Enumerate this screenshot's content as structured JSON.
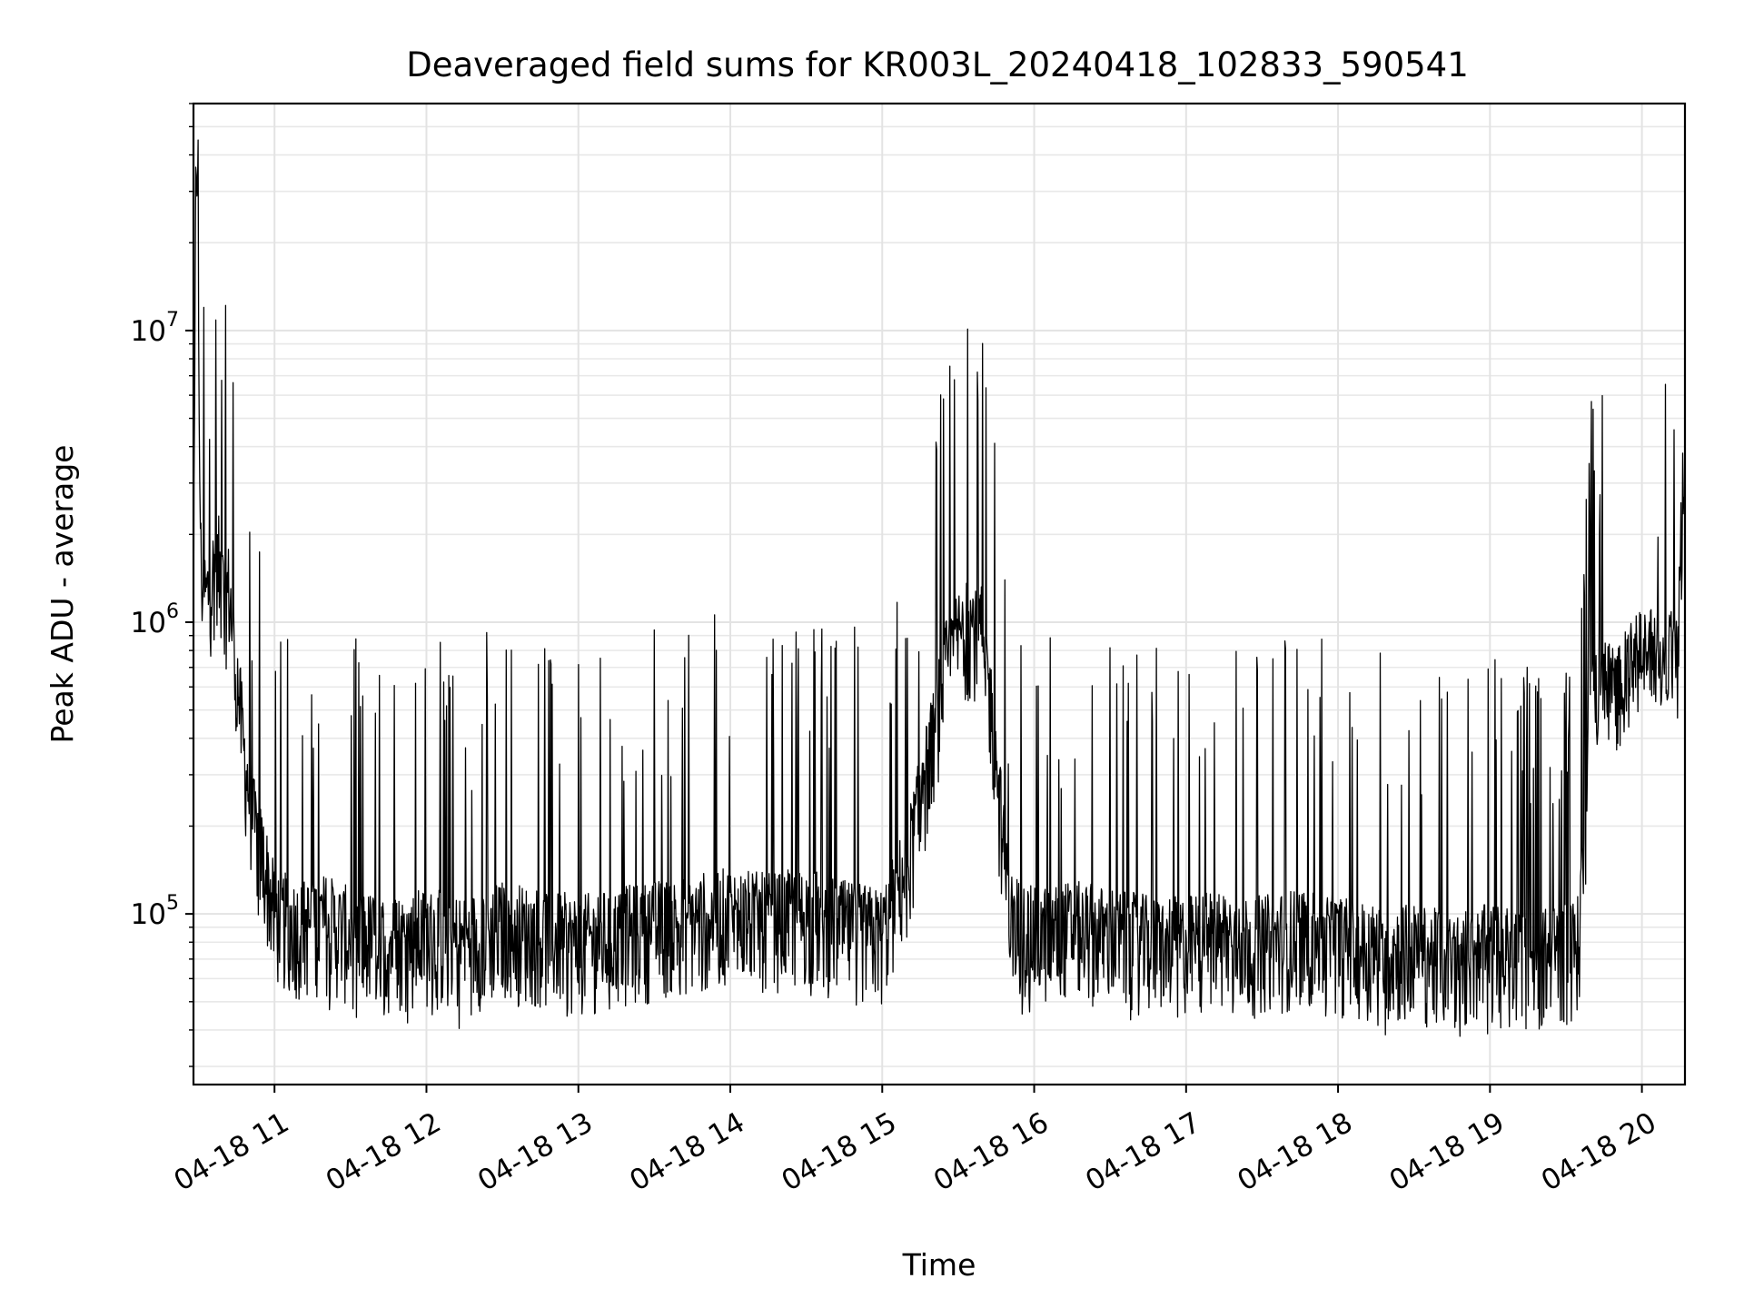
{
  "chart_data": {
    "type": "line",
    "title": "Deaveraged field sums for KR003L_20240418_102833_590541",
    "xlabel": "Time",
    "ylabel": "Peak ADU - average",
    "x_tick_labels": [
      "04-18 11",
      "04-18 12",
      "04-18 13",
      "04-18 14",
      "04-18 15",
      "04-18 16",
      "04-18 17",
      "04-18 18",
      "04-18 19",
      "04-18 20"
    ],
    "x_ticks": [
      "2024-04-18 11:00",
      "2024-04-18 12:00",
      "2024-04-18 13:00",
      "2024-04-18 14:00",
      "2024-04-18 15:00",
      "2024-04-18 16:00",
      "2024-04-18 17:00",
      "2024-04-18 18:00",
      "2024-04-18 19:00",
      "2024-04-18 20:00"
    ],
    "xlim": [
      "2024-04-18 10:28",
      "2024-04-18 20:17"
    ],
    "y_tick_labels": [
      "10^5",
      "10^6",
      "10^7"
    ],
    "y_scale": "log",
    "ylim": [
      26000,
      60000000
    ],
    "grid": true,
    "line_color": "#000000",
    "series": [
      {
        "x": [
          "2024-04-18 10:28",
          "2024-04-18 10:29",
          "2024-04-18 10:31",
          "2024-04-18 10:33",
          "2024-04-18 10:35",
          "2024-04-18 10:38",
          "2024-04-18 10:40",
          "2024-04-18 10:42",
          "2024-04-18 10:45",
          "2024-04-18 10:48",
          "2024-04-18 10:52",
          "2024-04-18 10:56",
          "2024-04-18 11:00",
          "2024-04-18 11:10",
          "2024-04-18 11:20",
          "2024-04-18 11:30",
          "2024-04-18 11:45",
          "2024-04-18 12:00",
          "2024-04-18 12:15",
          "2024-04-18 12:30",
          "2024-04-18 12:45",
          "2024-04-18 13:00",
          "2024-04-18 13:15",
          "2024-04-18 13:30",
          "2024-04-18 13:45",
          "2024-04-18 14:00",
          "2024-04-18 14:15",
          "2024-04-18 14:30",
          "2024-04-18 14:45",
          "2024-04-18 15:00",
          "2024-04-18 15:10",
          "2024-04-18 15:20",
          "2024-04-18 15:25",
          "2024-04-18 15:30",
          "2024-04-18 15:35",
          "2024-04-18 15:40",
          "2024-04-18 15:45",
          "2024-04-18 15:50",
          "2024-04-18 15:55",
          "2024-04-18 16:00",
          "2024-04-18 16:15",
          "2024-04-18 16:30",
          "2024-04-18 16:45",
          "2024-04-18 17:00",
          "2024-04-18 17:15",
          "2024-04-18 17:30",
          "2024-04-18 17:45",
          "2024-04-18 18:00",
          "2024-04-18 18:15",
          "2024-04-18 18:30",
          "2024-04-18 18:45",
          "2024-04-18 19:00",
          "2024-04-18 19:15",
          "2024-04-18 19:30",
          "2024-04-18 19:35",
          "2024-04-18 19:40",
          "2024-04-18 19:45",
          "2024-04-18 19:50",
          "2024-04-18 19:55",
          "2024-04-18 20:00",
          "2024-04-18 20:05",
          "2024-04-18 20:10",
          "2024-04-18 20:14",
          "2024-04-18 20:17"
        ],
        "y": [
          900000,
          40000000,
          1500000,
          1200000,
          1400000,
          1600000,
          1200000,
          1300000,
          700000,
          350000,
          200000,
          150000,
          100000,
          90000,
          95000,
          85000,
          80000,
          85000,
          80000,
          90000,
          85000,
          80000,
          85000,
          90000,
          95000,
          100000,
          95000,
          100000,
          90000,
          85000,
          150000,
          400000,
          700000,
          900000,
          1000000,
          900000,
          350000,
          100000,
          90000,
          85000,
          90000,
          85000,
          80000,
          80000,
          85000,
          80000,
          85000,
          80000,
          75000,
          75000,
          70000,
          75000,
          70000,
          75000,
          80000,
          600000,
          650000,
          600000,
          700000,
          800000,
          800000,
          850000,
          750000,
          5000000
        ]
      }
    ]
  }
}
